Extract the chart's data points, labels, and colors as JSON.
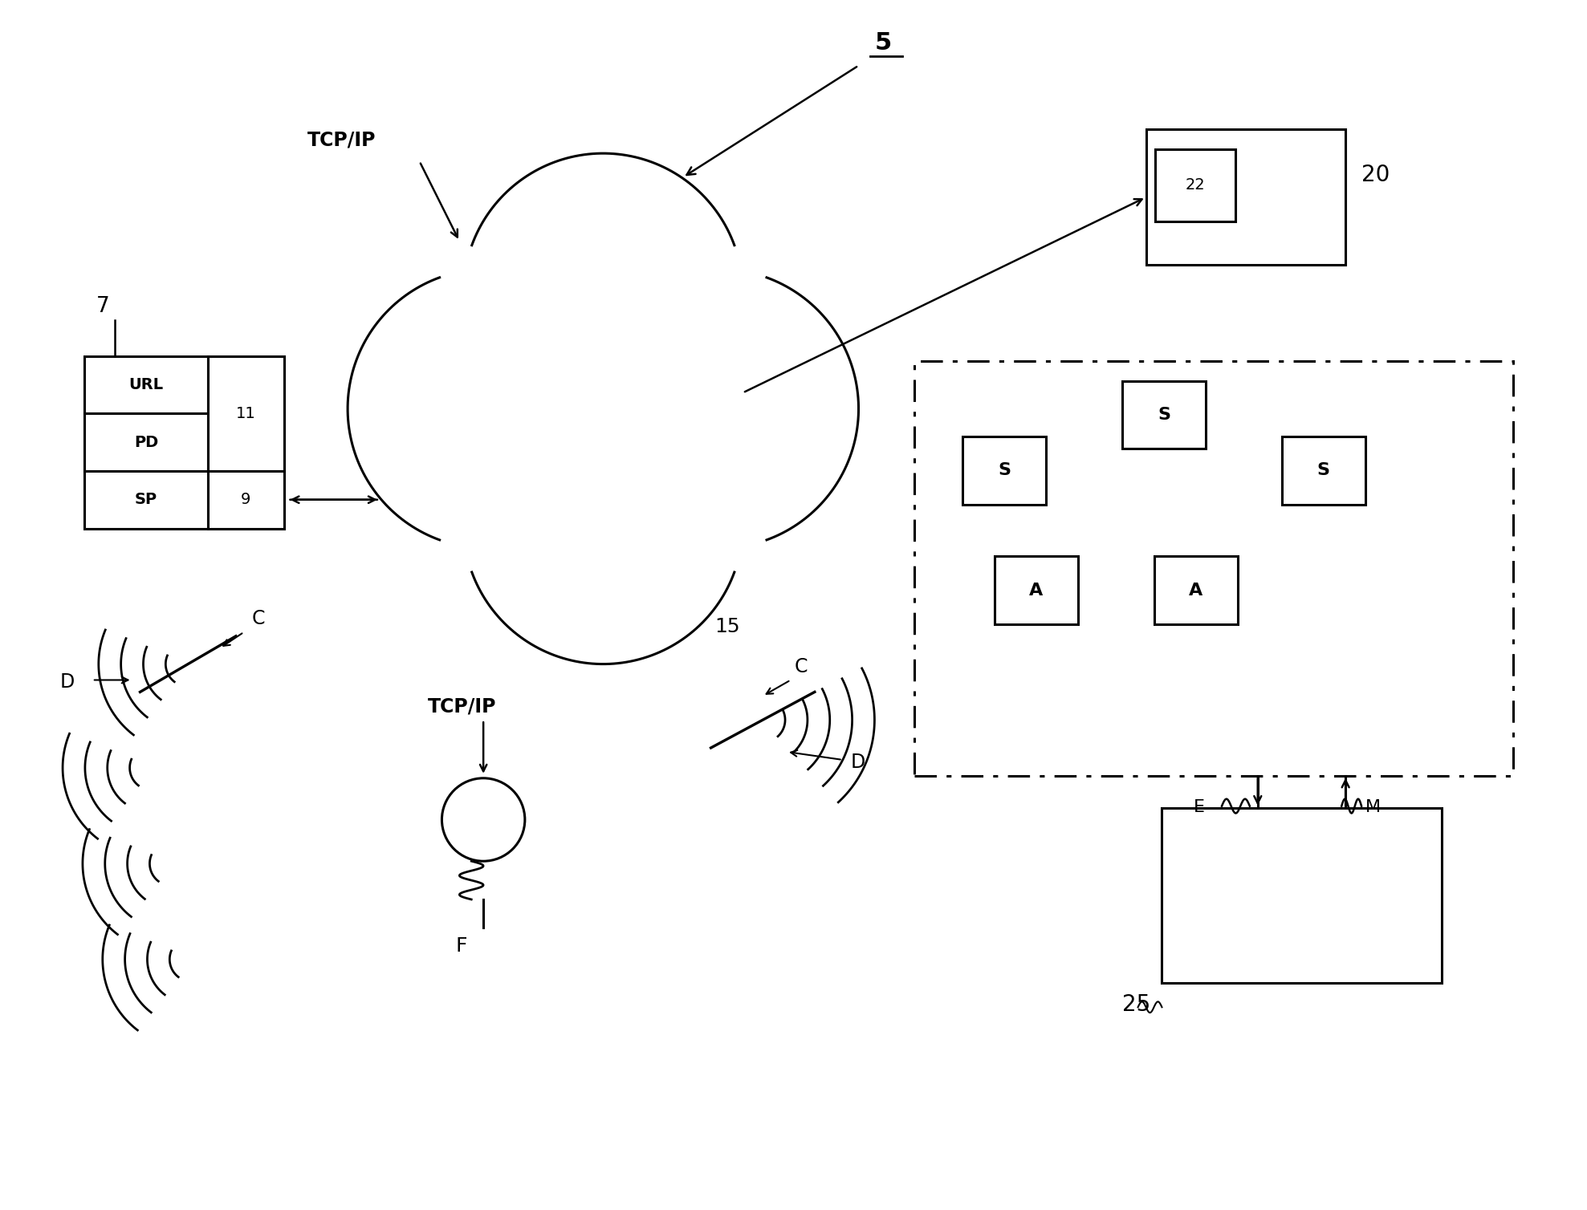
{
  "bg_color": "#ffffff",
  "line_color": "#000000",
  "fig_width": 19.77,
  "fig_height": 15.08,
  "label_5": "5",
  "label_15": "15",
  "label_7": "7",
  "label_9": "9",
  "label_11": "11",
  "label_20": "20",
  "label_22": "22",
  "label_25": "25",
  "label_tcpip_top": "TCP/IP",
  "label_tcpip_bottom": "TCP/IP",
  "label_C_left": "C",
  "label_D_left": "D",
  "label_C_right": "C",
  "label_D_right": "D",
  "label_F": "F",
  "label_E": "E",
  "label_M": "M",
  "label_S": "S",
  "label_A": "A",
  "label_URL": "URL",
  "label_PD": "PD",
  "label_SP": "SP"
}
